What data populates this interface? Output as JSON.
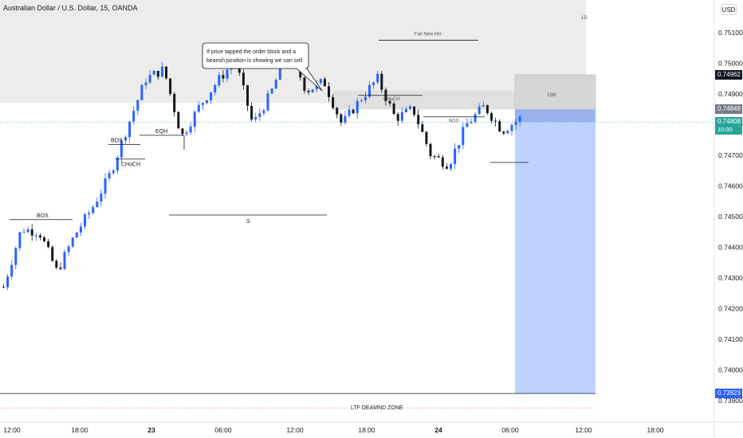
{
  "header": {
    "title": "Australian Dollar / U.S. Dollar, 15, OANDA",
    "currency": "USD"
  },
  "colors": {
    "up": "#2962ff",
    "down": "#131722",
    "zone_htf": "#ececec",
    "zone_15m": "#d6d6d6",
    "short_target": "#bfd2ff",
    "short_stop": "#9ab1f0",
    "price_line": "#26a69a",
    "tag_dark": "#131722",
    "tag_grey": "#787b86",
    "tag_teal": "#26a69a",
    "tag_blue": "#2962ff",
    "ltf_line": "#f23645"
  },
  "chart_data": {
    "type": "candlestick",
    "title": "Australian Dollar / U.S. Dollar, 15, OANDA",
    "ylim": [
      0.739,
      0.7518
    ],
    "y_ticks": [
      "0.75100",
      "0.75000",
      "0.74900",
      "0.74800",
      "0.74700",
      "0.74600",
      "0.74500",
      "0.74400",
      "0.74300",
      "0.74200",
      "0.74100",
      "0.74000",
      "0.73900"
    ],
    "x_ticks": [
      "12:00",
      "18:00",
      "23",
      "06:00",
      "12:00",
      "18:00",
      "24",
      "06:00",
      "12:00",
      "18:00"
    ],
    "price_tags": [
      {
        "value": "0.74962",
        "style": "dark"
      },
      {
        "value": "0.74849",
        "style": "grey"
      },
      {
        "value": "0.74808",
        "sub": "10:00",
        "style": "teal"
      },
      {
        "value": "0.73923",
        "style": "blue"
      }
    ],
    "candle_path": [
      0.7427,
      0.7446,
      0.7445,
      0.7432,
      0.7444,
      0.7453,
      0.7464,
      0.748,
      0.7495,
      0.7498,
      0.7476,
      0.7486,
      0.7494,
      0.7501,
      0.748,
      0.749,
      0.7505,
      0.7491,
      0.7494,
      0.748,
      0.7488,
      0.7495,
      0.7482,
      0.7485,
      0.747,
      0.7467,
      0.748,
      0.7486,
      0.7478,
      0.7482
    ],
    "zones": [
      {
        "label": "1D",
        "from": 0.7487,
        "to": 0.7518
      },
      {
        "label": "15M",
        "from": 0.74849,
        "to": 0.74962
      }
    ],
    "levels": [
      {
        "label": "EQH",
        "value": 0.74765
      },
      {
        "label": "BOS",
        "value": 0.74735
      },
      {
        "label": "BOS",
        "value": 0.7449
      },
      {
        "label": "CHoCH",
        "value": 0.7469
      },
      {
        "label": "S",
        "value": 0.74505
      },
      {
        "label": "CHoCH",
        "value": 0.74895
      },
      {
        "label": "Fail New HH",
        "value": 0.75075
      },
      {
        "label": "BOS",
        "value": 0.74825
      },
      {
        "label": "LTF DEAMND ZONE",
        "value": 0.73923
      }
    ],
    "position": {
      "entry": 0.74808,
      "stop": 0.74849,
      "target": 0.73923
    },
    "callout": [
      "If price tapped the order block and a",
      "bearish position is showing we can sell"
    ]
  }
}
